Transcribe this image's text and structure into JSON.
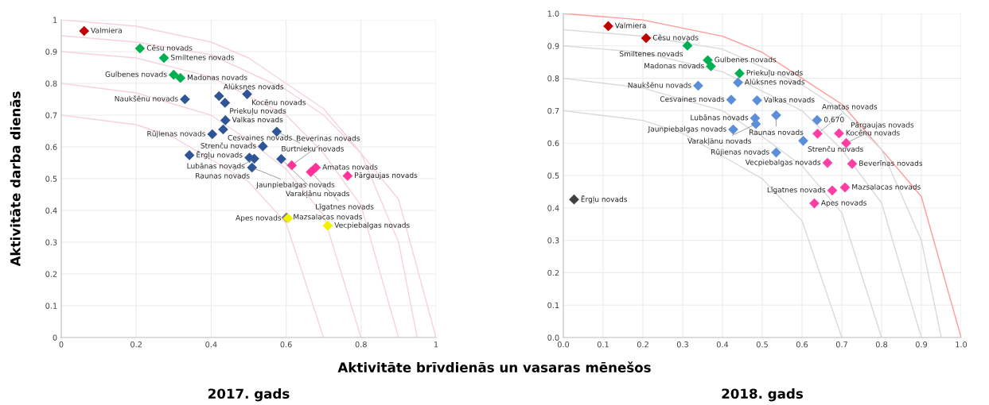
{
  "chart_data": [
    {
      "type": "scatter",
      "title": "2017. gads",
      "xlabel": "Aktivitāte brīvdienās un vasaras mēnešos",
      "ylabel": "Aktivitāte darba dienās",
      "xlim": [
        0,
        1
      ],
      "ylim": [
        0,
        1
      ],
      "xticks": [
        0,
        0.2,
        0.4,
        0.6,
        0.8,
        1
      ],
      "yticks": [
        0,
        0.1,
        0.2,
        0.3,
        0.4,
        0.5,
        0.6,
        0.7,
        0.8,
        0.9,
        1
      ],
      "grid": true,
      "marker": "diamond",
      "series": [
        {
          "type": "line",
          "marker": "none",
          "color": "#f6d3d8",
          "x": [
            0,
            0.2,
            0.4,
            0.5,
            0.6,
            0.7,
            0.8,
            0.9,
            1
          ],
          "values": [
            1,
            0.98,
            0.93,
            0.88,
            0.8,
            0.72,
            0.58,
            0.435,
            0
          ]
        },
        {
          "type": "line",
          "marker": "none",
          "color": "#f6d3d8",
          "x": [
            0,
            0.2,
            0.4,
            0.6,
            0.7,
            0.8,
            0.9,
            0.95
          ],
          "values": [
            0.95,
            0.93,
            0.89,
            0.78,
            0.7,
            0.58,
            0.3,
            0
          ]
        },
        {
          "type": "line",
          "marker": "none",
          "color": "#f6d3d8",
          "x": [
            0,
            0.2,
            0.4,
            0.6,
            0.7,
            0.8,
            0.9
          ],
          "values": [
            0.9,
            0.88,
            0.82,
            0.7,
            0.58,
            0.415,
            0
          ]
        },
        {
          "type": "line",
          "marker": "none",
          "color": "#f6d3d8",
          "x": [
            0,
            0.2,
            0.4,
            0.5,
            0.6,
            0.7,
            0.8
          ],
          "values": [
            0.8,
            0.77,
            0.7,
            0.62,
            0.53,
            0.385,
            0
          ]
        },
        {
          "type": "line",
          "marker": "none",
          "color": "#f6d3d8",
          "x": [
            0,
            0.2,
            0.3,
            0.4,
            0.5,
            0.6,
            0.7
          ],
          "values": [
            0.7,
            0.67,
            0.63,
            0.56,
            0.49,
            0.36,
            0
          ]
        },
        {
          "color": "#c00000",
          "x": [
            0.061
          ],
          "values": [
            0.965
          ]
        },
        {
          "color": "#00b050",
          "x": [
            0.21,
            0.274,
            0.3,
            0.318
          ],
          "values": [
            0.91,
            0.88,
            0.827,
            0.817
          ]
        },
        {
          "color": "#2f5597",
          "x": [
            0.33,
            0.421,
            0.496,
            0.437,
            0.438,
            0.432,
            0.403,
            0.575,
            0.538,
            0.342,
            0.502,
            0.515,
            0.509,
            0.587
          ],
          "values": [
            0.75,
            0.76,
            0.766,
            0.739,
            0.684,
            0.655,
            0.64,
            0.648,
            0.602,
            0.574,
            0.566,
            0.563,
            0.535,
            0.562
          ]
        },
        {
          "color": "#ff3399",
          "x": [
            0.615,
            0.679,
            0.666,
            0.764
          ],
          "values": [
            0.542,
            0.535,
            0.521,
            0.509
          ]
        },
        {
          "color": "#7f7f7f",
          "x": [
            0.601
          ],
          "values": [
            0.378
          ]
        },
        {
          "color": "#f2f200",
          "x": [
            0.605,
            0.711
          ],
          "values": [
            0.375,
            0.352
          ]
        }
      ],
      "annotations": [
        {
          "text": "Valmiera",
          "x": 0.061,
          "y": 0.965
        },
        {
          "text": "Cēsu novads",
          "x": 0.21,
          "y": 0.91
        },
        {
          "text": "Smiltenes novads",
          "x": 0.274,
          "y": 0.88
        },
        {
          "text": "Gulbenes novads",
          "x": 0.3,
          "y": 0.827
        },
        {
          "text": "Madonas novads",
          "x": 0.318,
          "y": 0.817
        },
        {
          "text": "Naukšēnu novads",
          "x": 0.33,
          "y": 0.75
        },
        {
          "text": "Alūksnes novads",
          "x": 0.421,
          "y": 0.76
        },
        {
          "text": "Kocēnu novads",
          "x": 0.496,
          "y": 0.766
        },
        {
          "text": "Priekuļu novads",
          "x": 0.437,
          "y": 0.739
        },
        {
          "text": "Valkas novads",
          "x": 0.438,
          "y": 0.684
        },
        {
          "text": "Cesvaines novads",
          "x": 0.432,
          "y": 0.655
        },
        {
          "text": "Rūjienas novads",
          "x": 0.403,
          "y": 0.64
        },
        {
          "text": "Burtnieku novads",
          "x": 0.575,
          "y": 0.648
        },
        {
          "text": "Strenču novads",
          "x": 0.538,
          "y": 0.602
        },
        {
          "text": "Ērgļu novads",
          "x": 0.342,
          "y": 0.574
        },
        {
          "text": "Lubānas novads",
          "x": 0.502,
          "y": 0.566
        },
        {
          "text": "Raunas novads",
          "x": 0.515,
          "y": 0.563
        },
        {
          "text": "Jaunpiebalgas novads",
          "x": 0.509,
          "y": 0.535
        },
        {
          "text": "Varakļānu novads",
          "x": 0.587,
          "y": 0.562
        },
        {
          "text": "Beverīnas novads",
          "x": 0.615,
          "y": 0.542
        },
        {
          "text": "Amatas novads",
          "x": 0.679,
          "y": 0.535
        },
        {
          "text": "Līgatnes novads",
          "x": 0.666,
          "y": 0.521
        },
        {
          "text": "Pārgaujas novads",
          "x": 0.764,
          "y": 0.509
        },
        {
          "text": "Mazsalacas novads",
          "x": 0.601,
          "y": 0.378
        },
        {
          "text": "Apes novads",
          "x": 0.605,
          "y": 0.375
        },
        {
          "text": "Vecpiebalgas novads",
          "x": 0.711,
          "y": 0.352
        }
      ]
    },
    {
      "type": "scatter",
      "title": "2018. gads",
      "xlim": [
        0,
        1
      ],
      "ylim": [
        0,
        1
      ],
      "xticks": [
        {
          "value": 0,
          "label": "0.0"
        },
        {
          "value": 0.1,
          "label": "0.1"
        },
        {
          "value": 0.2,
          "label": "0.2"
        },
        {
          "value": 0.3,
          "label": "0.3"
        },
        {
          "value": 0.4,
          "label": "0.4"
        },
        {
          "value": 0.5,
          "label": "0.5"
        },
        {
          "value": 0.6,
          "label": "0.6"
        },
        {
          "value": 0.7,
          "label": "0.7"
        },
        {
          "value": 0.8,
          "label": "0.8"
        },
        {
          "value": 0.9,
          "label": "0.9"
        },
        {
          "value": 1,
          "label": "1.0"
        }
      ],
      "yticks": [
        {
          "value": 0,
          "label": "0.0"
        },
        {
          "value": 0.1,
          "label": "0.1"
        },
        {
          "value": 0.2,
          "label": "0.2"
        },
        {
          "value": 0.3,
          "label": "0.3"
        },
        {
          "value": 0.4,
          "label": "0.4"
        },
        {
          "value": 0.5,
          "label": "0.5"
        },
        {
          "value": 0.6,
          "label": "0.6"
        },
        {
          "value": 0.7,
          "label": "0.7"
        },
        {
          "value": 0.8,
          "label": "0.8"
        },
        {
          "value": 0.9,
          "label": "0.9"
        },
        {
          "value": 1,
          "label": "1.0"
        }
      ],
      "grid": true,
      "marker": "diamond",
      "series": [
        {
          "type": "line",
          "marker": "none",
          "color": "#ff9999",
          "x": [
            0,
            0.2,
            0.4,
            0.5,
            0.6,
            0.7,
            0.8,
            0.9,
            1
          ],
          "values": [
            1,
            0.98,
            0.93,
            0.88,
            0.8,
            0.72,
            0.58,
            0.435,
            0
          ]
        },
        {
          "type": "line",
          "marker": "none",
          "color": "#d9d9d9",
          "x": [
            0,
            0.2,
            0.4,
            0.6,
            0.7,
            0.8,
            0.9,
            0.95
          ],
          "values": [
            0.95,
            0.93,
            0.89,
            0.78,
            0.7,
            0.58,
            0.3,
            0
          ]
        },
        {
          "type": "line",
          "marker": "none",
          "color": "#d9d9d9",
          "x": [
            0,
            0.2,
            0.4,
            0.6,
            0.7,
            0.8,
            0.9
          ],
          "values": [
            0.9,
            0.88,
            0.82,
            0.7,
            0.58,
            0.415,
            0
          ]
        },
        {
          "type": "line",
          "marker": "none",
          "color": "#d9d9d9",
          "x": [
            0,
            0.2,
            0.4,
            0.5,
            0.6,
            0.7,
            0.8
          ],
          "values": [
            0.8,
            0.77,
            0.7,
            0.62,
            0.53,
            0.385,
            0
          ]
        },
        {
          "type": "line",
          "marker": "none",
          "color": "#d9d9d9",
          "x": [
            0,
            0.2,
            0.3,
            0.4,
            0.5,
            0.6,
            0.7
          ],
          "values": [
            0.7,
            0.67,
            0.63,
            0.56,
            0.49,
            0.36,
            0
          ]
        },
        {
          "color": "#c00000",
          "x": [
            0.113,
            0.208
          ],
          "values": [
            0.961,
            0.924
          ]
        },
        {
          "color": "#00b050",
          "x": [
            0.312,
            0.363,
            0.371,
            0.443
          ],
          "values": [
            0.901,
            0.856,
            0.837,
            0.815
          ]
        },
        {
          "color": "#5b8fd9",
          "x": [
            0.439,
            0.339,
            0.422,
            0.487,
            0.535,
            0.638,
            0.482,
            0.484,
            0.427,
            0.603,
            0.535
          ],
          "values": [
            0.787,
            0.777,
            0.734,
            0.732,
            0.686,
            0.671,
            0.677,
            0.659,
            0.642,
            0.607,
            0.571
          ]
        },
        {
          "color": "#ff3ea5",
          "x": [
            0.639,
            0.693,
            0.711,
            0.664,
            0.726,
            0.708,
            0.676,
            0.631
          ],
          "values": [
            0.629,
            0.63,
            0.6,
            0.539,
            0.536,
            0.463,
            0.454,
            0.414
          ]
        },
        {
          "color": "#404040",
          "x": [
            0.027
          ],
          "values": [
            0.426
          ]
        }
      ],
      "annotations": [
        {
          "text": "Valmiera",
          "x": 0.113,
          "y": 0.961
        },
        {
          "text": "Cēsu novads",
          "x": 0.208,
          "y": 0.924
        },
        {
          "text": "Smiltenes novads",
          "x": 0.312,
          "y": 0.901
        },
        {
          "text": "Gulbenes novads",
          "x": 0.363,
          "y": 0.856
        },
        {
          "text": "Madonas novads",
          "x": 0.371,
          "y": 0.837
        },
        {
          "text": "Priekuļu novads",
          "x": 0.443,
          "y": 0.815
        },
        {
          "text": "Alūksnes novads",
          "x": 0.439,
          "y": 0.787
        },
        {
          "text": "Naukšēnu novads",
          "x": 0.339,
          "y": 0.777
        },
        {
          "text": "Cesvaines novads",
          "x": 0.422,
          "y": 0.734
        },
        {
          "text": "Valkas novads",
          "x": 0.487,
          "y": 0.732
        },
        {
          "text": "Raunas novads",
          "x": 0.535,
          "y": 0.686
        },
        {
          "text": "0.670",
          "x": 0.638,
          "y": 0.671
        },
        {
          "text": "Lubānas novads",
          "x": 0.482,
          "y": 0.677
        },
        {
          "text": "Varakļānu novads",
          "x": 0.484,
          "y": 0.659
        },
        {
          "text": "Jaunpiebalgas novads",
          "x": 0.427,
          "y": 0.642
        },
        {
          "text": "Strenču novads",
          "x": 0.603,
          "y": 0.607
        },
        {
          "text": "Rūjienas novads",
          "x": 0.535,
          "y": 0.571
        },
        {
          "text": "Amatas novads",
          "x": 0.639,
          "y": 0.629
        },
        {
          "text": "Kocēnu novads",
          "x": 0.693,
          "y": 0.63
        },
        {
          "text": "Pārgaujas novads",
          "x": 0.711,
          "y": 0.6
        },
        {
          "text": "Vecpiebalgas novads",
          "x": 0.664,
          "y": 0.539
        },
        {
          "text": "Beverīnas novads",
          "x": 0.726,
          "y": 0.536
        },
        {
          "text": "Mazsalacas novads",
          "x": 0.708,
          "y": 0.463
        },
        {
          "text": "Līgatnes novads",
          "x": 0.676,
          "y": 0.454
        },
        {
          "text": "Apes novads",
          "x": 0.631,
          "y": 0.414
        },
        {
          "text": "Ērgļu novads",
          "x": 0.027,
          "y": 0.426
        }
      ]
    }
  ]
}
